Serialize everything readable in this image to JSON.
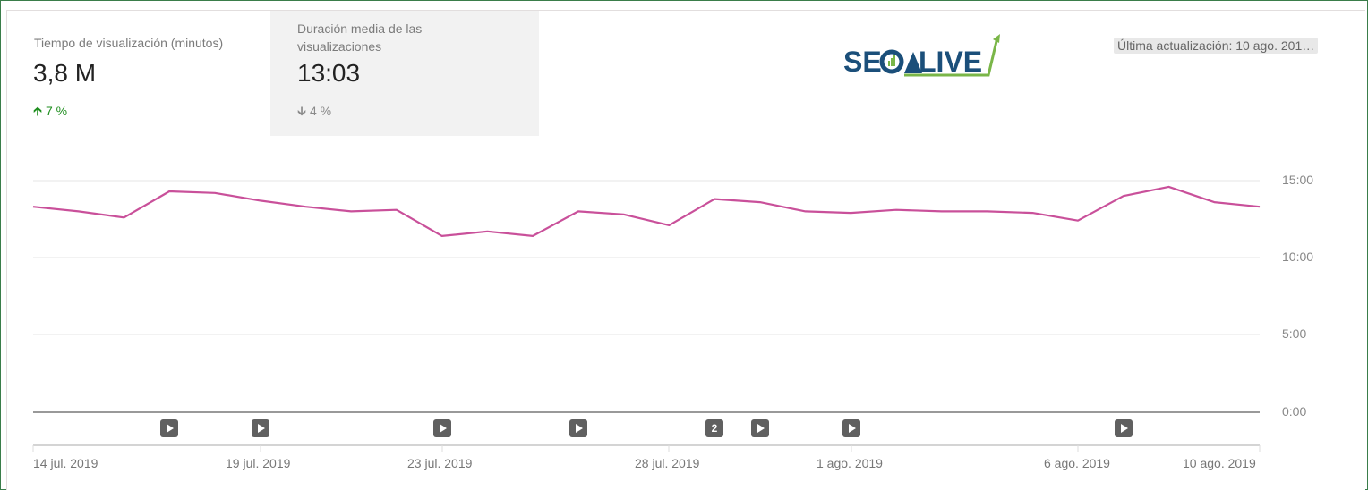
{
  "metrics": [
    {
      "label": "Tiempo de visualización (minutos)",
      "value": "3,8 M",
      "delta": "7 %",
      "delta_direction": "up",
      "delta_icon": "arrow-up-icon",
      "color": "#1e8e1e"
    },
    {
      "label": "Duración media de las visualizaciones",
      "value": "13:03",
      "delta": "4 %",
      "delta_direction": "down",
      "delta_icon": "arrow-down-icon",
      "color": "#8a8a8a",
      "selected": true
    }
  ],
  "logo": {
    "text_left": "SEO",
    "text_right": "LIVE",
    "color_blue": "#1b4f7a",
    "color_green": "#7ab648"
  },
  "last_updated": "Última actualización: 10 ago. 201…",
  "chart_data": {
    "type": "line",
    "title": "Duración media de las visualizaciones",
    "xlabel": "",
    "ylabel": "",
    "line_color": "#c9509a",
    "ylim": [
      0,
      15
    ],
    "yticks": [
      "0:00",
      "5:00",
      "10:00",
      "15:00"
    ],
    "grid": true,
    "xtick_labels": [
      "14 jul. 2019",
      "19 jul. 2019",
      "23 jul. 2019",
      "28 jul. 2019",
      "1 ago. 2019",
      "6 ago. 2019",
      "10 ago. 2019"
    ],
    "x": [
      "14 jul.",
      "15 jul.",
      "16 jul.",
      "17 jul.",
      "18 jul.",
      "19 jul.",
      "20 jul.",
      "21 jul.",
      "22 jul.",
      "23 jul.",
      "24 jul.",
      "25 jul.",
      "26 jul.",
      "27 jul.",
      "28 jul.",
      "29 jul.",
      "30 jul.",
      "31 jul.",
      "1 ago.",
      "2 ago.",
      "3 ago.",
      "4 ago.",
      "5 ago.",
      "6 ago.",
      "7 ago.",
      "8 ago.",
      "9 ago.",
      "10 ago."
    ],
    "values_minutes": [
      13.3,
      13.0,
      12.6,
      14.3,
      14.2,
      13.7,
      13.3,
      13.0,
      13.1,
      11.4,
      11.7,
      11.4,
      13.0,
      12.8,
      12.1,
      13.8,
      13.6,
      13.0,
      12.9,
      13.1,
      13.0,
      13.0,
      12.9,
      12.4,
      14.0,
      14.6,
      13.6,
      13.3
    ],
    "annotations": [
      {
        "date_index": 3,
        "type": "video",
        "label": ""
      },
      {
        "date_index": 5,
        "type": "video",
        "label": ""
      },
      {
        "date_index": 9,
        "type": "video",
        "label": ""
      },
      {
        "date_index": 12,
        "type": "video",
        "label": ""
      },
      {
        "date_index": 15,
        "type": "count",
        "label": "2"
      },
      {
        "date_index": 16,
        "type": "video",
        "label": ""
      },
      {
        "date_index": 18,
        "type": "video",
        "label": ""
      },
      {
        "date_index": 24,
        "type": "video",
        "label": ""
      }
    ]
  }
}
